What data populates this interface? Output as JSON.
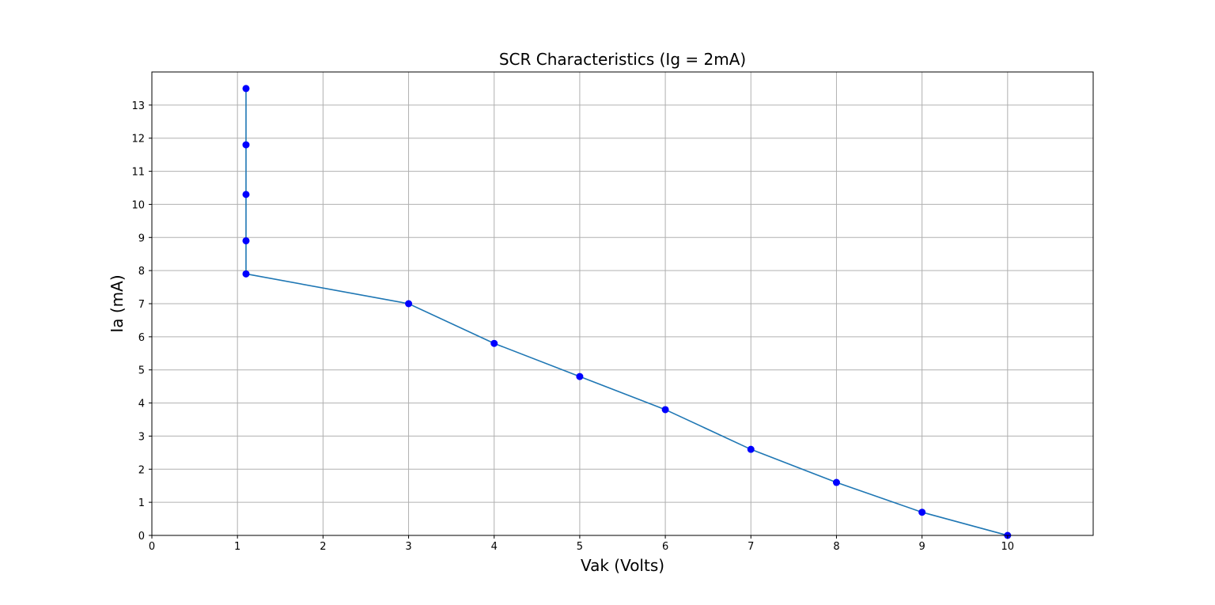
{
  "chart_data": {
    "type": "line",
    "title": "SCR Characteristics (Ig = 2mA)",
    "xlabel": "Vak (Volts)",
    "ylabel": "Ia (mA)",
    "xlim": [
      0,
      11
    ],
    "ylim": [
      0,
      14
    ],
    "xticks": [
      0,
      1,
      2,
      3,
      4,
      5,
      6,
      7,
      8,
      9,
      10
    ],
    "yticks": [
      0,
      1,
      2,
      3,
      4,
      5,
      6,
      7,
      8,
      9,
      10,
      11,
      12,
      13
    ],
    "grid": true,
    "series": [
      {
        "x": [
          10,
          9,
          8,
          7,
          6,
          5,
          4,
          3,
          1.1,
          1.1,
          1.1,
          1.1,
          1.1
        ],
        "y": [
          0,
          0.7,
          1.6,
          2.6,
          3.8,
          4.8,
          5.8,
          7.0,
          7.9,
          8.9,
          10.3,
          11.8,
          13.5
        ],
        "line_color": "#1f77b4",
        "marker_color": "#0000ff"
      }
    ]
  }
}
